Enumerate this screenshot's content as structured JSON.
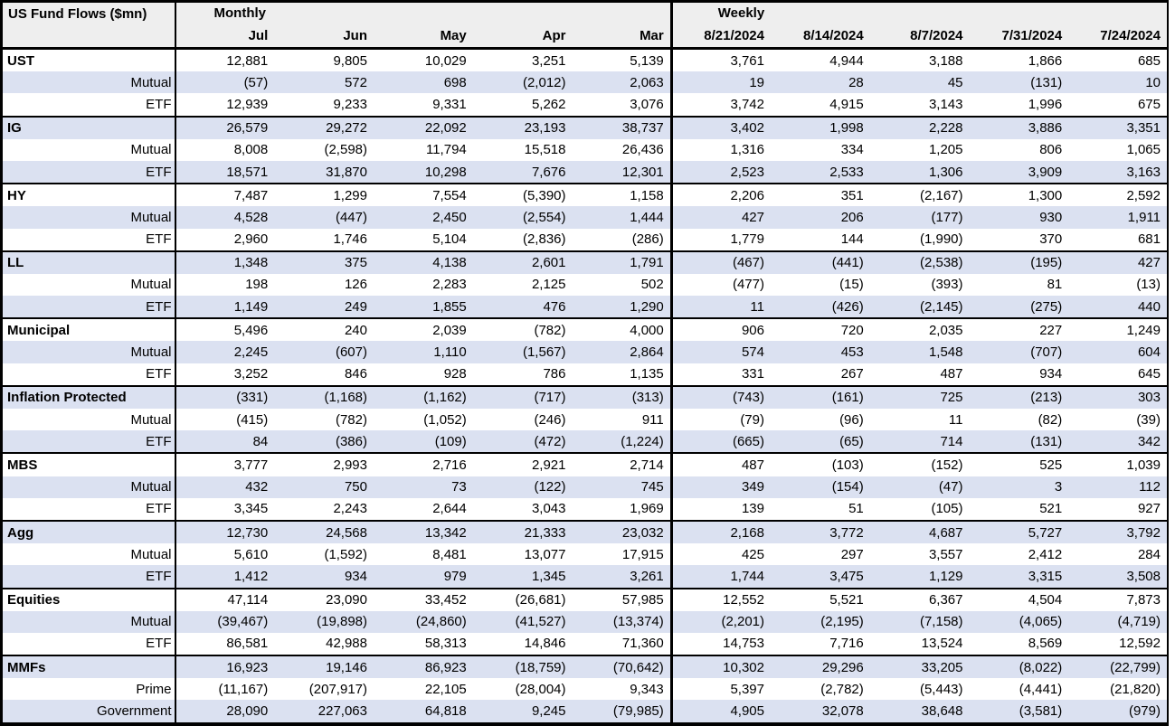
{
  "table": {
    "title": "US Fund Flows ($mn)",
    "sections": [
      {
        "label": "Monthly",
        "columns": [
          "Jul",
          "Jun",
          "May",
          "Apr",
          "Mar"
        ]
      },
      {
        "label": "Weekly",
        "columns": [
          "8/21/2024",
          "8/14/2024",
          "8/7/2024",
          "7/31/2024",
          "7/24/2024"
        ]
      }
    ],
    "groups": [
      {
        "key": "ust",
        "rows": [
          {
            "label": "UST",
            "monthly": [
              "12,881",
              "9,805",
              "10,029",
              "3,251",
              "5,139"
            ],
            "weekly": [
              "3,761",
              "4,944",
              "3,188",
              "1,866",
              "685"
            ]
          },
          {
            "label": "Mutual",
            "monthly": [
              "(57)",
              "572",
              "698",
              "(2,012)",
              "2,063"
            ],
            "weekly": [
              "19",
              "28",
              "45",
              "(131)",
              "10"
            ]
          },
          {
            "label": "ETF",
            "monthly": [
              "12,939",
              "9,233",
              "9,331",
              "5,262",
              "3,076"
            ],
            "weekly": [
              "3,742",
              "4,915",
              "3,143",
              "1,996",
              "675"
            ]
          }
        ]
      },
      {
        "key": "ig",
        "rows": [
          {
            "label": "IG",
            "monthly": [
              "26,579",
              "29,272",
              "22,092",
              "23,193",
              "38,737"
            ],
            "weekly": [
              "3,402",
              "1,998",
              "2,228",
              "3,886",
              "3,351"
            ]
          },
          {
            "label": "Mutual",
            "monthly": [
              "8,008",
              "(2,598)",
              "11,794",
              "15,518",
              "26,436"
            ],
            "weekly": [
              "1,316",
              "334",
              "1,205",
              "806",
              "1,065"
            ]
          },
          {
            "label": "ETF",
            "monthly": [
              "18,571",
              "31,870",
              "10,298",
              "7,676",
              "12,301"
            ],
            "weekly": [
              "2,523",
              "2,533",
              "1,306",
              "3,909",
              "3,163"
            ]
          }
        ]
      },
      {
        "key": "hy",
        "rows": [
          {
            "label": "HY",
            "monthly": [
              "7,487",
              "1,299",
              "7,554",
              "(5,390)",
              "1,158"
            ],
            "weekly": [
              "2,206",
              "351",
              "(2,167)",
              "1,300",
              "2,592"
            ]
          },
          {
            "label": "Mutual",
            "monthly": [
              "4,528",
              "(447)",
              "2,450",
              "(2,554)",
              "1,444"
            ],
            "weekly": [
              "427",
              "206",
              "(177)",
              "930",
              "1,911"
            ]
          },
          {
            "label": "ETF",
            "monthly": [
              "2,960",
              "1,746",
              "5,104",
              "(2,836)",
              "(286)"
            ],
            "weekly": [
              "1,779",
              "144",
              "(1,990)",
              "370",
              "681"
            ]
          }
        ]
      },
      {
        "key": "ll",
        "rows": [
          {
            "label": "LL",
            "monthly": [
              "1,348",
              "375",
              "4,138",
              "2,601",
              "1,791"
            ],
            "weekly": [
              "(467)",
              "(441)",
              "(2,538)",
              "(195)",
              "427"
            ]
          },
          {
            "label": "Mutual",
            "monthly": [
              "198",
              "126",
              "2,283",
              "2,125",
              "502"
            ],
            "weekly": [
              "(477)",
              "(15)",
              "(393)",
              "81",
              "(13)"
            ]
          },
          {
            "label": "ETF",
            "monthly": [
              "1,149",
              "249",
              "1,855",
              "476",
              "1,290"
            ],
            "weekly": [
              "11",
              "(426)",
              "(2,145)",
              "(275)",
              "440"
            ]
          }
        ]
      },
      {
        "key": "municipal",
        "rows": [
          {
            "label": "Municipal",
            "monthly": [
              "5,496",
              "240",
              "2,039",
              "(782)",
              "4,000"
            ],
            "weekly": [
              "906",
              "720",
              "2,035",
              "227",
              "1,249"
            ]
          },
          {
            "label": "Mutual",
            "monthly": [
              "2,245",
              "(607)",
              "1,110",
              "(1,567)",
              "2,864"
            ],
            "weekly": [
              "574",
              "453",
              "1,548",
              "(707)",
              "604"
            ]
          },
          {
            "label": "ETF",
            "monthly": [
              "3,252",
              "846",
              "928",
              "786",
              "1,135"
            ],
            "weekly": [
              "331",
              "267",
              "487",
              "934",
              "645"
            ]
          }
        ]
      },
      {
        "key": "inflation-protected",
        "rows": [
          {
            "label": "Inflation Protected",
            "monthly": [
              "(331)",
              "(1,168)",
              "(1,162)",
              "(717)",
              "(313)"
            ],
            "weekly": [
              "(743)",
              "(161)",
              "725",
              "(213)",
              "303"
            ]
          },
          {
            "label": "Mutual",
            "monthly": [
              "(415)",
              "(782)",
              "(1,052)",
              "(246)",
              "911"
            ],
            "weekly": [
              "(79)",
              "(96)",
              "11",
              "(82)",
              "(39)"
            ]
          },
          {
            "label": "ETF",
            "monthly": [
              "84",
              "(386)",
              "(109)",
              "(472)",
              "(1,224)"
            ],
            "weekly": [
              "(665)",
              "(65)",
              "714",
              "(131)",
              "342"
            ]
          }
        ]
      },
      {
        "key": "mbs",
        "rows": [
          {
            "label": "MBS",
            "monthly": [
              "3,777",
              "2,993",
              "2,716",
              "2,921",
              "2,714"
            ],
            "weekly": [
              "487",
              "(103)",
              "(152)",
              "525",
              "1,039"
            ]
          },
          {
            "label": "Mutual",
            "monthly": [
              "432",
              "750",
              "73",
              "(122)",
              "745"
            ],
            "weekly": [
              "349",
              "(154)",
              "(47)",
              "3",
              "112"
            ]
          },
          {
            "label": "ETF",
            "monthly": [
              "3,345",
              "2,243",
              "2,644",
              "3,043",
              "1,969"
            ],
            "weekly": [
              "139",
              "51",
              "(105)",
              "521",
              "927"
            ]
          }
        ]
      },
      {
        "key": "agg",
        "rows": [
          {
            "label": "Agg",
            "monthly": [
              "12,730",
              "24,568",
              "13,342",
              "21,333",
              "23,032"
            ],
            "weekly": [
              "2,168",
              "3,772",
              "4,687",
              "5,727",
              "3,792"
            ]
          },
          {
            "label": "Mutual",
            "monthly": [
              "5,610",
              "(1,592)",
              "8,481",
              "13,077",
              "17,915"
            ],
            "weekly": [
              "425",
              "297",
              "3,557",
              "2,412",
              "284"
            ]
          },
          {
            "label": "ETF",
            "monthly": [
              "1,412",
              "934",
              "979",
              "1,345",
              "3,261"
            ],
            "weekly": [
              "1,744",
              "3,475",
              "1,129",
              "3,315",
              "3,508"
            ]
          }
        ]
      },
      {
        "key": "equities",
        "rows": [
          {
            "label": "Equities",
            "monthly": [
              "47,114",
              "23,090",
              "33,452",
              "(26,681)",
              "57,985"
            ],
            "weekly": [
              "12,552",
              "5,521",
              "6,367",
              "4,504",
              "7,873"
            ]
          },
          {
            "label": "Mutual",
            "monthly": [
              "(39,467)",
              "(19,898)",
              "(24,860)",
              "(41,527)",
              "(13,374)"
            ],
            "weekly": [
              "(2,201)",
              "(2,195)",
              "(7,158)",
              "(4,065)",
              "(4,719)"
            ]
          },
          {
            "label": "ETF",
            "monthly": [
              "86,581",
              "42,988",
              "58,313",
              "14,846",
              "71,360"
            ],
            "weekly": [
              "14,753",
              "7,716",
              "13,524",
              "8,569",
              "12,592"
            ]
          }
        ]
      },
      {
        "key": "mmfs",
        "rows": [
          {
            "label": "MMFs",
            "monthly": [
              "16,923",
              "19,146",
              "86,923",
              "(18,759)",
              "(70,642)"
            ],
            "weekly": [
              "10,302",
              "29,296",
              "33,205",
              "(8,022)",
              "(22,799)"
            ]
          },
          {
            "label": "Prime",
            "monthly": [
              "(11,167)",
              "(207,917)",
              "22,105",
              "(28,004)",
              "9,343"
            ],
            "weekly": [
              "5,397",
              "(2,782)",
              "(5,443)",
              "(4,441)",
              "(21,820)"
            ]
          },
          {
            "label": "Government",
            "monthly": [
              "28,090",
              "227,063",
              "64,818",
              "9,245",
              "(79,985)"
            ],
            "weekly": [
              "4,905",
              "32,078",
              "38,648",
              "(3,581)",
              "(979)"
            ]
          }
        ]
      }
    ]
  },
  "colors": {
    "header_bg": "#eeeeee",
    "stripe_bg": "#dbe1f1",
    "border": "#000000",
    "text": "#000000"
  }
}
